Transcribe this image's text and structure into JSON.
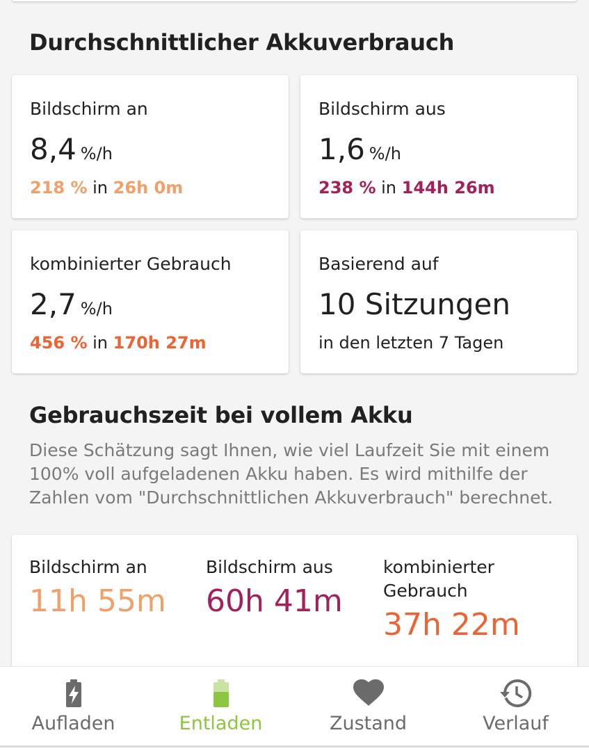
{
  "avg_section": {
    "title": "Durchschnittlicher Akkuverbrauch",
    "cards": {
      "screen_on": {
        "label": "Bildschirm an",
        "value": "8,4",
        "unit": "%/h",
        "sub_percent": "218 %",
        "sub_in": "in",
        "sub_time": "26h 0m",
        "color": "#f0a06a"
      },
      "screen_off": {
        "label": "Bildschirm aus",
        "value": "1,6",
        "unit": "%/h",
        "sub_percent": "238 %",
        "sub_in": "in",
        "sub_time": "144h 26m",
        "color": "#a3215a"
      },
      "combined": {
        "label": "kombinierter Gebrauch",
        "value": "2,7",
        "unit": "%/h",
        "sub_percent": "456 %",
        "sub_in": "in",
        "sub_time": "170h 27m",
        "color": "#ec6434"
      },
      "based_on": {
        "label": "Basierend auf",
        "value": "10 Sitzungen",
        "sub": "in den letzten 7 Tagen"
      }
    }
  },
  "full_section": {
    "title": "Gebrauchszeit bei vollem Akku",
    "description": "Diese Schätzung sagt Ihnen, wie viel Laufzeit Sie mit einem 100% voll aufgeladenen Akku haben. Es wird mithilfe der Zahlen vom \"Durchschnittlichen Akkuverbrauch\" berechnet.",
    "columns": [
      {
        "label": "Bildschirm an",
        "value": "11h 55m",
        "color": "#f0a06a"
      },
      {
        "label": "Bildschirm aus",
        "value": "60h 41m",
        "color": "#a3215a"
      },
      {
        "label": "kombinierter Gebrauch",
        "value": "37h 22m",
        "color": "#ec6434"
      }
    ]
  },
  "bottom_nav": {
    "items": [
      {
        "label": "Aufladen",
        "icon": "battery-charging-icon",
        "active": false
      },
      {
        "label": "Entladen",
        "icon": "battery-discharging-icon",
        "active": true
      },
      {
        "label": "Zustand",
        "icon": "heart-icon",
        "active": false
      },
      {
        "label": "Verlauf",
        "icon": "history-icon",
        "active": false
      }
    ],
    "active_color": "#8dc63f",
    "inactive_color": "#6b6b6b"
  }
}
